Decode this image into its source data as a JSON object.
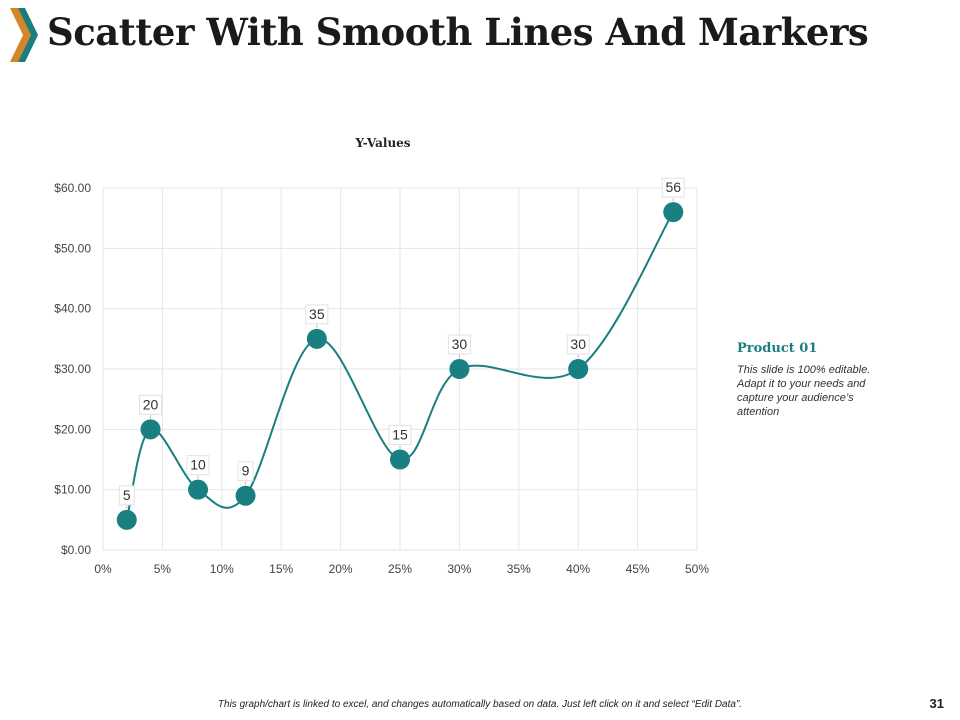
{
  "slide": {
    "title": "Scatter With Smooth Lines And Markers",
    "page_number": "31",
    "footer_note": "This graph/chart is linked to excel, and changes automatically based on data. Just left click on it and select “Edit Data”."
  },
  "side_panel": {
    "heading": "Product 01",
    "text": "This slide is 100% editable. Adapt it to your needs and capture your audience’s attention"
  },
  "colors": {
    "accent_teal": "#1a7f80",
    "chevron_orange": "#d4862b",
    "chevron_teal": "#1b7d7e",
    "grid": "#e6e6e6"
  },
  "chart_data": {
    "type": "scatter",
    "title": "Y-Values",
    "xlabel": "",
    "ylabel": "",
    "xlim": [
      0,
      0.5
    ],
    "ylim": [
      0,
      60
    ],
    "x_ticks": [
      0,
      0.05,
      0.1,
      0.15,
      0.2,
      0.25,
      0.3,
      0.35,
      0.4,
      0.45,
      0.5
    ],
    "x_tick_labels": [
      "0%",
      "5%",
      "10%",
      "15%",
      "20%",
      "25%",
      "30%",
      "35%",
      "40%",
      "45%",
      "50%"
    ],
    "y_ticks": [
      0,
      10,
      20,
      30,
      40,
      50,
      60
    ],
    "y_tick_labels": [
      "$0.00",
      "$10.00",
      "$20.00",
      "$30.00",
      "$40.00",
      "$50.00",
      "$60.00"
    ],
    "grid": true,
    "smooth": true,
    "series": [
      {
        "name": "Y-Values",
        "x": [
          0.02,
          0.04,
          0.08,
          0.12,
          0.18,
          0.25,
          0.3,
          0.4,
          0.48
        ],
        "y": [
          5,
          20,
          10,
          9,
          35,
          15,
          30,
          30,
          56
        ],
        "labels": [
          "5",
          "20",
          "10",
          "9",
          "35",
          "15",
          "30",
          "30",
          "56"
        ]
      }
    ]
  }
}
